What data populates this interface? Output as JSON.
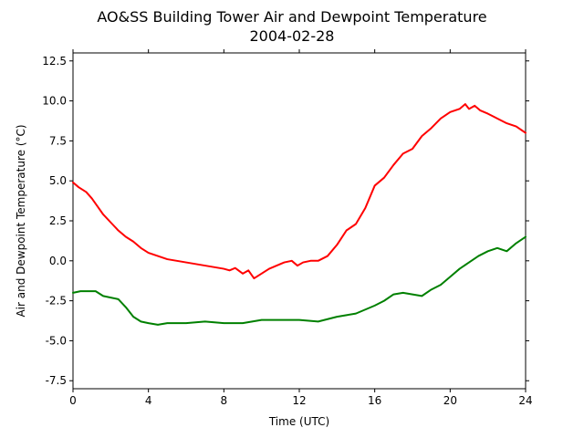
{
  "chart_data": {
    "type": "line",
    "title": "AO&SS Building Tower Air and Dewpoint Temperature",
    "subtitle": "2004-02-28",
    "xlabel": "Time (UTC)",
    "ylabel": "Air and Dewpoint Temperature (°C)",
    "xlim": [
      0,
      24
    ],
    "ylim": [
      -8,
      13
    ],
    "xticks": [
      0,
      4,
      8,
      12,
      16,
      20,
      24
    ],
    "yticks": [
      -7.5,
      -5.0,
      -2.5,
      0.0,
      2.5,
      5.0,
      7.5,
      10.0,
      12.5
    ],
    "grid": false,
    "series": [
      {
        "color": "#ff0000",
        "points": [
          [
            0.0,
            4.9
          ],
          [
            0.3,
            4.6
          ],
          [
            0.7,
            4.3
          ],
          [
            1.0,
            3.9
          ],
          [
            1.3,
            3.4
          ],
          [
            1.6,
            2.9
          ],
          [
            2.0,
            2.4
          ],
          [
            2.4,
            1.9
          ],
          [
            2.8,
            1.5
          ],
          [
            3.2,
            1.2
          ],
          [
            3.6,
            0.8
          ],
          [
            4.0,
            0.5
          ],
          [
            4.5,
            0.3
          ],
          [
            5.0,
            0.1
          ],
          [
            5.5,
            0.0
          ],
          [
            6.0,
            -0.1
          ],
          [
            6.5,
            -0.2
          ],
          [
            7.0,
            -0.3
          ],
          [
            7.5,
            -0.4
          ],
          [
            8.0,
            -0.5
          ],
          [
            8.3,
            -0.6
          ],
          [
            8.6,
            -0.45
          ],
          [
            9.0,
            -0.8
          ],
          [
            9.3,
            -0.6
          ],
          [
            9.6,
            -1.1
          ],
          [
            10.0,
            -0.8
          ],
          [
            10.4,
            -0.5
          ],
          [
            10.8,
            -0.3
          ],
          [
            11.2,
            -0.1
          ],
          [
            11.6,
            0.0
          ],
          [
            11.9,
            -0.3
          ],
          [
            12.2,
            -0.1
          ],
          [
            12.6,
            0.0
          ],
          [
            13.0,
            0.0
          ],
          [
            13.5,
            0.3
          ],
          [
            14.0,
            1.0
          ],
          [
            14.5,
            1.9
          ],
          [
            15.0,
            2.3
          ],
          [
            15.5,
            3.3
          ],
          [
            16.0,
            4.7
          ],
          [
            16.5,
            5.2
          ],
          [
            17.0,
            6.0
          ],
          [
            17.5,
            6.7
          ],
          [
            18.0,
            7.0
          ],
          [
            18.5,
            7.8
          ],
          [
            19.0,
            8.3
          ],
          [
            19.5,
            8.9
          ],
          [
            20.0,
            9.3
          ],
          [
            20.5,
            9.5
          ],
          [
            20.8,
            9.8
          ],
          [
            21.0,
            9.5
          ],
          [
            21.3,
            9.7
          ],
          [
            21.6,
            9.4
          ],
          [
            22.0,
            9.2
          ],
          [
            22.5,
            8.9
          ],
          [
            23.0,
            8.6
          ],
          [
            23.5,
            8.4
          ],
          [
            24.0,
            8.0
          ]
        ]
      },
      {
        "color": "#008000",
        "points": [
          [
            0.0,
            -2.0
          ],
          [
            0.4,
            -1.9
          ],
          [
            0.8,
            -1.9
          ],
          [
            1.2,
            -1.9
          ],
          [
            1.6,
            -2.2
          ],
          [
            2.0,
            -2.3
          ],
          [
            2.4,
            -2.4
          ],
          [
            2.8,
            -2.9
          ],
          [
            3.2,
            -3.5
          ],
          [
            3.6,
            -3.8
          ],
          [
            4.0,
            -3.9
          ],
          [
            4.5,
            -4.0
          ],
          [
            5.0,
            -3.9
          ],
          [
            6.0,
            -3.9
          ],
          [
            7.0,
            -3.8
          ],
          [
            8.0,
            -3.9
          ],
          [
            9.0,
            -3.9
          ],
          [
            10.0,
            -3.7
          ],
          [
            11.0,
            -3.7
          ],
          [
            12.0,
            -3.7
          ],
          [
            13.0,
            -3.8
          ],
          [
            14.0,
            -3.5
          ],
          [
            14.5,
            -3.4
          ],
          [
            15.0,
            -3.3
          ],
          [
            16.0,
            -2.8
          ],
          [
            16.5,
            -2.5
          ],
          [
            17.0,
            -2.1
          ],
          [
            17.5,
            -2.0
          ],
          [
            18.0,
            -2.1
          ],
          [
            18.5,
            -2.2
          ],
          [
            19.0,
            -1.8
          ],
          [
            19.5,
            -1.5
          ],
          [
            20.0,
            -1.0
          ],
          [
            20.5,
            -0.5
          ],
          [
            21.0,
            -0.1
          ],
          [
            21.5,
            0.3
          ],
          [
            22.0,
            0.6
          ],
          [
            22.5,
            0.8
          ],
          [
            23.0,
            0.6
          ],
          [
            23.5,
            1.1
          ],
          [
            24.0,
            1.5
          ]
        ]
      }
    ]
  }
}
